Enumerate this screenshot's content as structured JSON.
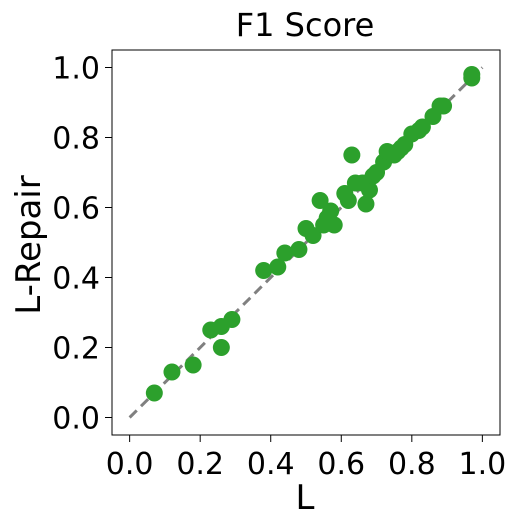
{
  "chart_data": {
    "type": "scatter",
    "title": "F1 Score",
    "xlabel": "L",
    "ylabel": "L-Repair",
    "xlim": [
      -0.05,
      1.05
    ],
    "ylim": [
      -0.05,
      1.05
    ],
    "xticks": [
      0.0,
      0.2,
      0.4,
      0.6,
      0.8,
      1.0
    ],
    "yticks": [
      0.0,
      0.2,
      0.4,
      0.6,
      0.8,
      1.0
    ],
    "xtick_labels": [
      "0.0",
      "0.2",
      "0.4",
      "0.6",
      "0.8",
      "1.0"
    ],
    "ytick_labels": [
      "0.0",
      "0.2",
      "0.4",
      "0.6",
      "0.8",
      "1.0"
    ],
    "grid": false,
    "point_color": "#2ca02c",
    "reference_line": {
      "from": [
        0,
        0
      ],
      "to": [
        1,
        1
      ],
      "color": "#808080",
      "style": "dashed"
    },
    "points": [
      [
        0.07,
        0.07
      ],
      [
        0.12,
        0.13
      ],
      [
        0.18,
        0.15
      ],
      [
        0.23,
        0.25
      ],
      [
        0.26,
        0.26
      ],
      [
        0.26,
        0.2
      ],
      [
        0.29,
        0.28
      ],
      [
        0.38,
        0.42
      ],
      [
        0.42,
        0.43
      ],
      [
        0.44,
        0.47
      ],
      [
        0.48,
        0.48
      ],
      [
        0.5,
        0.54
      ],
      [
        0.52,
        0.52
      ],
      [
        0.54,
        0.62
      ],
      [
        0.55,
        0.55
      ],
      [
        0.56,
        0.57
      ],
      [
        0.57,
        0.59
      ],
      [
        0.58,
        0.55
      ],
      [
        0.61,
        0.64
      ],
      [
        0.62,
        0.62
      ],
      [
        0.63,
        0.75
      ],
      [
        0.64,
        0.67
      ],
      [
        0.66,
        0.67
      ],
      [
        0.67,
        0.61
      ],
      [
        0.68,
        0.65
      ],
      [
        0.69,
        0.69
      ],
      [
        0.7,
        0.7
      ],
      [
        0.72,
        0.73
      ],
      [
        0.73,
        0.76
      ],
      [
        0.75,
        0.75
      ],
      [
        0.76,
        0.76
      ],
      [
        0.77,
        0.77
      ],
      [
        0.78,
        0.78
      ],
      [
        0.8,
        0.81
      ],
      [
        0.82,
        0.82
      ],
      [
        0.83,
        0.83
      ],
      [
        0.86,
        0.86
      ],
      [
        0.88,
        0.89
      ],
      [
        0.89,
        0.89
      ],
      [
        0.97,
        0.97
      ],
      [
        0.97,
        0.98
      ]
    ]
  }
}
